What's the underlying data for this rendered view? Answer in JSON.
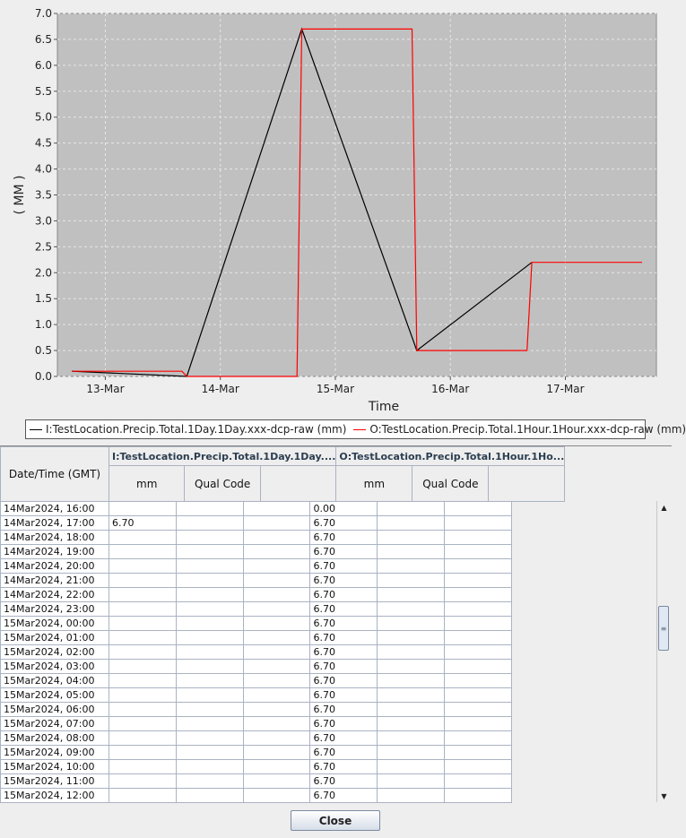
{
  "chart_data": {
    "type": "line",
    "xlabel": "Time",
    "ylabel": "( MM )",
    "x_ticks": [
      "13-Mar",
      "14-Mar",
      "15-Mar",
      "16-Mar",
      "17-Mar"
    ],
    "y_ticks": [
      "0.0",
      "0.5",
      "1.0",
      "1.5",
      "2.0",
      "2.5",
      "3.0",
      "3.5",
      "4.0",
      "4.5",
      "5.0",
      "5.5",
      "6.0",
      "6.5",
      "7.0"
    ],
    "xlim": [
      "2024-03-12 14:00",
      "2024-03-17 19:00"
    ],
    "ylim": [
      0,
      7
    ],
    "grid": true,
    "legend_position": "bottom",
    "background": "#c0c0c0",
    "series": [
      {
        "name": "I:TestLocation.Precip.Total.1Day.1Day.xxx-dcp-raw (mm)",
        "color": "#000000",
        "x": [
          "2024-03-12 17:00",
          "2024-03-13 17:00",
          "2024-03-14 17:00",
          "2024-03-15 17:00",
          "2024-03-16 17:00"
        ],
        "y": [
          0.1,
          0.0,
          6.7,
          0.5,
          2.2
        ]
      },
      {
        "name": "O:TestLocation.Precip.Total.1Hour.1Hour.xxx-dcp-raw (mm)",
        "color": "#ff0000",
        "x": [
          "2024-03-12 17:00",
          "2024-03-13 16:00",
          "2024-03-13 17:00",
          "2024-03-14 16:00",
          "2024-03-14 17:00",
          "2024-03-15 16:00",
          "2024-03-15 17:00",
          "2024-03-16 16:00",
          "2024-03-16 17:00",
          "2024-03-17 16:00"
        ],
        "y": [
          0.1,
          0.1,
          0.0,
          0.0,
          6.7,
          6.7,
          0.5,
          0.5,
          2.2,
          2.2
        ]
      }
    ]
  },
  "table": {
    "datetime_header": "Date/Time (GMT)",
    "group1_header": "I:TestLocation.Precip.Total.1Day.1Day....",
    "group2_header": "O:TestLocation.Precip.Total.1Hour.1Ho...",
    "sub_headers": [
      "mm",
      "Qual Code",
      "",
      "mm",
      "Qual Code",
      ""
    ],
    "rows": [
      [
        "14Mar2024, 16:00",
        "",
        "",
        "",
        "0.00",
        "",
        ""
      ],
      [
        "14Mar2024, 17:00",
        "6.70",
        "",
        "",
        "6.70",
        "",
        ""
      ],
      [
        "14Mar2024, 18:00",
        "",
        "",
        "",
        "6.70",
        "",
        ""
      ],
      [
        "14Mar2024, 19:00",
        "",
        "",
        "",
        "6.70",
        "",
        ""
      ],
      [
        "14Mar2024, 20:00",
        "",
        "",
        "",
        "6.70",
        "",
        ""
      ],
      [
        "14Mar2024, 21:00",
        "",
        "",
        "",
        "6.70",
        "",
        ""
      ],
      [
        "14Mar2024, 22:00",
        "",
        "",
        "",
        "6.70",
        "",
        ""
      ],
      [
        "14Mar2024, 23:00",
        "",
        "",
        "",
        "6.70",
        "",
        ""
      ],
      [
        "15Mar2024, 00:00",
        "",
        "",
        "",
        "6.70",
        "",
        ""
      ],
      [
        "15Mar2024, 01:00",
        "",
        "",
        "",
        "6.70",
        "",
        ""
      ],
      [
        "15Mar2024, 02:00",
        "",
        "",
        "",
        "6.70",
        "",
        ""
      ],
      [
        "15Mar2024, 03:00",
        "",
        "",
        "",
        "6.70",
        "",
        ""
      ],
      [
        "15Mar2024, 04:00",
        "",
        "",
        "",
        "6.70",
        "",
        ""
      ],
      [
        "15Mar2024, 05:00",
        "",
        "",
        "",
        "6.70",
        "",
        ""
      ],
      [
        "15Mar2024, 06:00",
        "",
        "",
        "",
        "6.70",
        "",
        ""
      ],
      [
        "15Mar2024, 07:00",
        "",
        "",
        "",
        "6.70",
        "",
        ""
      ],
      [
        "15Mar2024, 08:00",
        "",
        "",
        "",
        "6.70",
        "",
        ""
      ],
      [
        "15Mar2024, 09:00",
        "",
        "",
        "",
        "6.70",
        "",
        ""
      ],
      [
        "15Mar2024, 10:00",
        "",
        "",
        "",
        "6.70",
        "",
        ""
      ],
      [
        "15Mar2024, 11:00",
        "",
        "",
        "",
        "6.70",
        "",
        ""
      ],
      [
        "15Mar2024, 12:00",
        "",
        "",
        "",
        "6.70",
        "",
        ""
      ]
    ]
  },
  "scrollbar": {
    "up_icon": "arrow-up-icon",
    "down_icon": "arrow-down-icon",
    "position": 0.4
  },
  "close_button": {
    "label": "Close"
  }
}
